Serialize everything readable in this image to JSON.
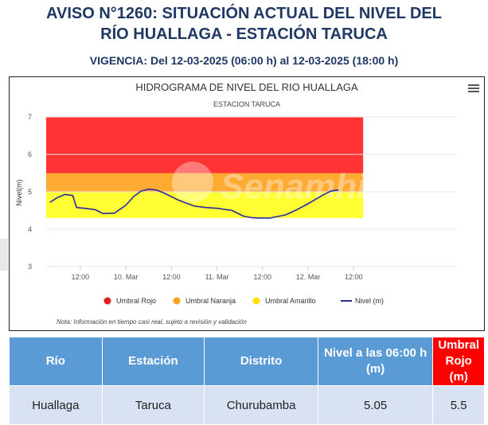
{
  "header": {
    "title_line1": "AVISO N°1260: SITUACIÓN ACTUAL DEL NIVEL DEL",
    "title_line2": "RÍO HUALLAGA - ESTACIÓN TARUCA",
    "vigencia": "VIGENCIA: Del 12-03-2025 (06:00 h) al 12-03-2025 (18:00 h)"
  },
  "chart_data": {
    "type": "line",
    "title": "HIDROGRAMA DE NIVEL DEL RIO HUALLAGA",
    "subtitle": "ESTACION TARUCA",
    "ylabel": "Nivel(m)",
    "ylim": [
      3,
      7
    ],
    "yticks": [
      "3",
      "4",
      "5",
      "6",
      "7"
    ],
    "xticks": [
      "12:00",
      "10. Mar",
      "12:00",
      "11. Mar",
      "12:00",
      "12. Mar",
      "12:00"
    ],
    "x_unit": "hours from 10 Mar 00:00",
    "xlim": [
      -21,
      87
    ],
    "xtick_positions": [
      -12,
      0,
      12,
      24,
      36,
      48,
      60
    ],
    "bands": [
      {
        "name": "Umbral Rojo",
        "from": 5.5,
        "to": 7.0,
        "color": "#ff3333"
      },
      {
        "name": "Umbral Naranja",
        "from": 5.0,
        "to": 5.5,
        "color": "#ffab33"
      },
      {
        "name": "Umbral Amarillo",
        "from": 4.3,
        "to": 5.0,
        "color": "#ffff33"
      }
    ],
    "series": [
      {
        "name": "Nivel (m)",
        "color": "#2a2aa0",
        "x": [
          -20,
          -18,
          -16,
          -14,
          -13,
          -10,
          -8,
          -6,
          -3,
          0,
          2,
          4,
          6,
          8,
          10,
          12,
          14,
          18,
          21,
          24,
          28,
          31,
          33,
          35,
          38,
          42,
          45,
          48,
          52,
          54,
          56
        ],
        "values": [
          4.72,
          4.85,
          4.93,
          4.9,
          4.58,
          4.55,
          4.52,
          4.42,
          4.43,
          4.64,
          4.87,
          5.02,
          5.07,
          5.05,
          4.97,
          4.87,
          4.77,
          4.62,
          4.58,
          4.56,
          4.5,
          4.35,
          4.31,
          4.3,
          4.3,
          4.38,
          4.52,
          4.68,
          4.92,
          5.02,
          5.05
        ]
      }
    ],
    "legend": [
      "Umbral Rojo",
      "Umbral Naranja",
      "Umbral Amarillo",
      "Nivel (m)"
    ],
    "legend_position": "bottom",
    "legend_colors": [
      "#e02020",
      "#ffa020",
      "#ffe000",
      "#2a2aa0"
    ],
    "note": "Nota: Información en tiempo casi real, sujeto a revisión y validación",
    "watermark": "Senamhi"
  },
  "table": {
    "headers": [
      "Río",
      "Estación",
      "Distrito",
      "Nivel a las 06:00 h (m)",
      "Umbral Rojo (m)"
    ],
    "rows": [
      [
        "Huallaga",
        "Taruca",
        "Churubamba",
        "5.05",
        "5.5"
      ]
    ]
  }
}
